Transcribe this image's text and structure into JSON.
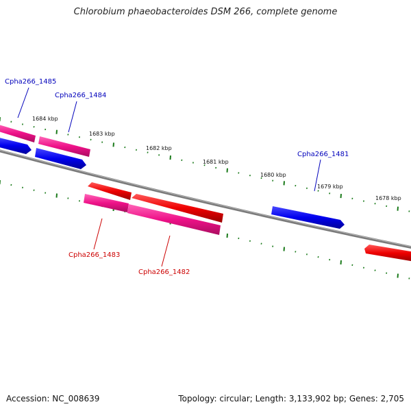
{
  "title": "Chlorobium phaeobacteroides DSM 266, complete genome",
  "accession": "Accession: NC_008639",
  "summary": "Topology: circular; Length: 3,133,902 bp; Genes: 2,705",
  "colors": {
    "backbone": "#7a7a7a",
    "minor_tick": "#1a7a1a",
    "forward_label": "#0000bb",
    "reverse_label": "#cc0000",
    "cds_forward": "#0000ee",
    "cds_reverse": "#ee0000",
    "gene_pink": "#ee1188"
  },
  "ticks": [
    {
      "label": "1684 kbp"
    },
    {
      "label": "1683 kbp"
    },
    {
      "label": "1682 kbp"
    },
    {
      "label": "1681 kbp"
    },
    {
      "label": "1680 kbp"
    },
    {
      "label": "1679 kbp"
    },
    {
      "label": "1678 kbp"
    }
  ],
  "genes": [
    {
      "label": "Cpha266_1485",
      "strand": "forward"
    },
    {
      "label": "Cpha266_1484",
      "strand": "forward"
    },
    {
      "label": "Cpha266_1483",
      "strand": "reverse"
    },
    {
      "label": "Cpha266_1482",
      "strand": "reverse"
    },
    {
      "label": "Cpha266_1481",
      "strand": "forward"
    }
  ]
}
